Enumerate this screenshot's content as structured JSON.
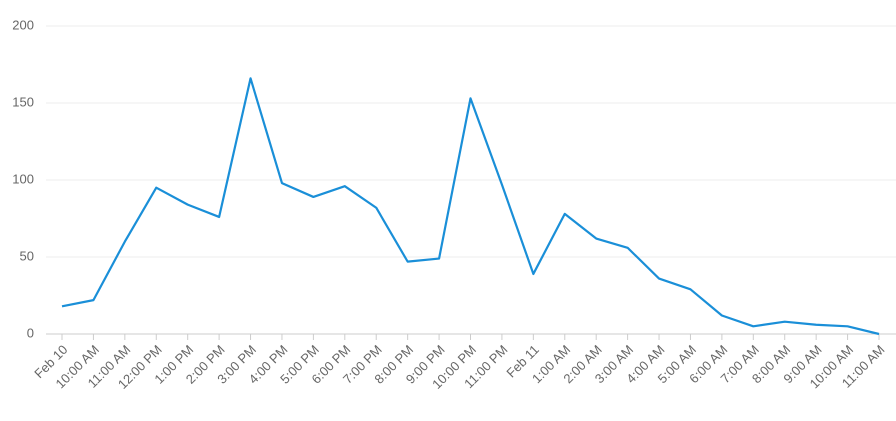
{
  "chart_data": {
    "type": "line",
    "categories": [
      "Feb 10",
      "10:00 AM",
      "11:00 AM",
      "12:00 PM",
      "1:00 PM",
      "2:00 PM",
      "3:00 PM",
      "4:00 PM",
      "5:00 PM",
      "6:00 PM",
      "7:00 PM",
      "8:00 PM",
      "9:00 PM",
      "10:00 PM",
      "11:00 PM",
      "Feb 11",
      "1:00 AM",
      "2:00 AM",
      "3:00 AM",
      "4:00 AM",
      "5:00 AM",
      "6:00 AM",
      "7:00 AM",
      "8:00 AM",
      "9:00 AM",
      "10:00 AM",
      "11:00 AM"
    ],
    "values": [
      18,
      22,
      60,
      95,
      84,
      76,
      166,
      98,
      89,
      96,
      82,
      47,
      49,
      153,
      97,
      39,
      78,
      62,
      56,
      36,
      29,
      12,
      5,
      8,
      6,
      5,
      0
    ],
    "color": "#1a8fd8",
    "ylim": [
      0,
      200
    ],
    "yticks": [
      0,
      50,
      100,
      150,
      200
    ],
    "grid": true
  }
}
